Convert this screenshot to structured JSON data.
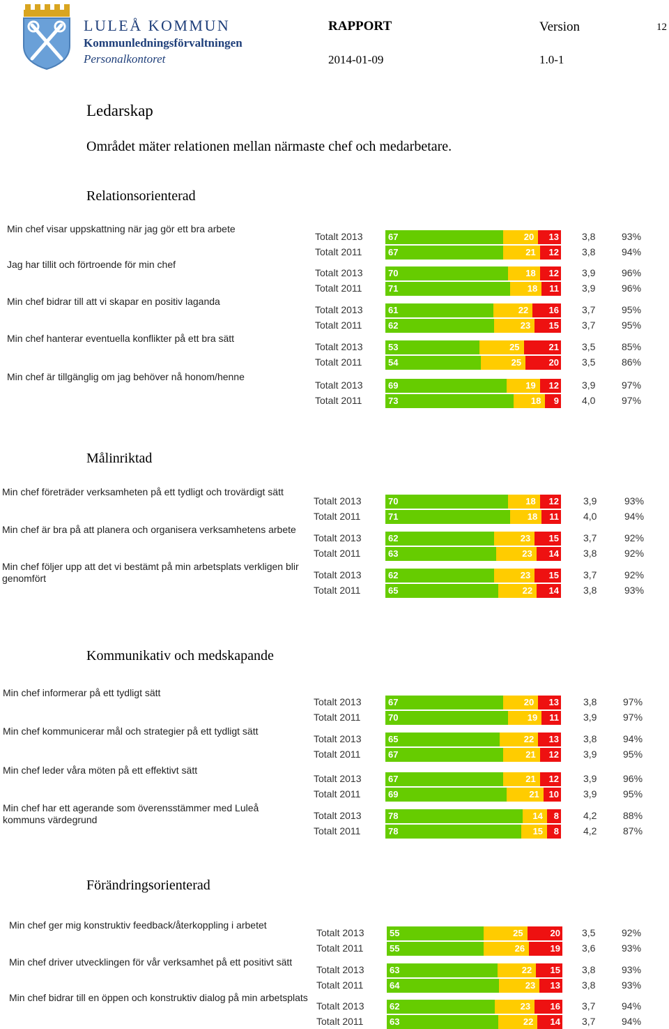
{
  "header": {
    "org_name": "LULEÅ KOMMUN",
    "department": "Kommunledningsförvaltningen",
    "office": "Personalkontoret",
    "doc_type": "RAPPORT",
    "version_label": "Version",
    "page_number": "12",
    "date": "2014-01-09",
    "version": "1.0-1"
  },
  "title": "Ledarskap",
  "intro": "Området mäter relationen mellan närmaste chef och medarbetare.",
  "colors": {
    "green": "#66cc00",
    "yellow": "#ffcc00",
    "red": "#ee1111"
  },
  "sections": [
    {
      "title": "Relationsorienterad",
      "questions": [
        {
          "text": "Min chef visar uppskattning när jag gör ett bra arbete",
          "rows": [
            {
              "label": "Totalt 2013",
              "green": 67,
              "yellow": 20,
              "red": 13,
              "mean": "3,8",
              "pct": "93%"
            },
            {
              "label": "Totalt 2011",
              "green": 67,
              "yellow": 21,
              "red": 12,
              "mean": "3,8",
              "pct": "94%"
            }
          ]
        },
        {
          "text": "Jag har tillit och förtroende för min chef",
          "rows": [
            {
              "label": "Totalt 2013",
              "green": 70,
              "yellow": 18,
              "red": 12,
              "mean": "3,9",
              "pct": "96%"
            },
            {
              "label": "Totalt 2011",
              "green": 71,
              "yellow": 18,
              "red": 11,
              "mean": "3,9",
              "pct": "96%"
            }
          ]
        },
        {
          "text": "Min chef bidrar till att vi skapar en positiv laganda",
          "rows": [
            {
              "label": "Totalt 2013",
              "green": 61,
              "yellow": 22,
              "red": 16,
              "mean": "3,7",
              "pct": "95%"
            },
            {
              "label": "Totalt 2011",
              "green": 62,
              "yellow": 23,
              "red": 15,
              "mean": "3,7",
              "pct": "95%"
            }
          ]
        },
        {
          "text": "Min chef hanterar eventuella konflikter på ett bra sätt",
          "rows": [
            {
              "label": "Totalt 2013",
              "green": 53,
              "yellow": 25,
              "red": 21,
              "mean": "3,5",
              "pct": "85%"
            },
            {
              "label": "Totalt 2011",
              "green": 54,
              "yellow": 25,
              "red": 20,
              "mean": "3,5",
              "pct": "86%"
            }
          ]
        },
        {
          "text": "Min chef är tillgänglig om jag behöver nå honom/henne",
          "rows": [
            {
              "label": "Totalt 2013",
              "green": 69,
              "yellow": 19,
              "red": 12,
              "mean": "3,9",
              "pct": "97%"
            },
            {
              "label": "Totalt 2011",
              "green": 73,
              "yellow": 18,
              "red": 9,
              "mean": "4,0",
              "pct": "97%"
            }
          ]
        }
      ]
    },
    {
      "title": "Målinriktad",
      "questions": [
        {
          "text": "Min chef företräder verksamheten på ett tydligt och trovärdigt sätt",
          "rows": [
            {
              "label": "Totalt 2013",
              "green": 70,
              "yellow": 18,
              "red": 12,
              "mean": "3,9",
              "pct": "93%"
            },
            {
              "label": "Totalt 2011",
              "green": 71,
              "yellow": 18,
              "red": 11,
              "mean": "4,0",
              "pct": "94%"
            }
          ]
        },
        {
          "text": "Min chef är bra på att planera och organisera verksamhetens arbete",
          "rows": [
            {
              "label": "Totalt 2013",
              "green": 62,
              "yellow": 23,
              "red": 15,
              "mean": "3,7",
              "pct": "92%"
            },
            {
              "label": "Totalt 2011",
              "green": 63,
              "yellow": 23,
              "red": 14,
              "mean": "3,8",
              "pct": "92%"
            }
          ]
        },
        {
          "text": "Min chef följer upp att det vi bestämt på min arbetsplats verkligen blir genomfört",
          "rows": [
            {
              "label": "Totalt 2013",
              "green": 62,
              "yellow": 23,
              "red": 15,
              "mean": "3,7",
              "pct": "92%"
            },
            {
              "label": "Totalt 2011",
              "green": 65,
              "yellow": 22,
              "red": 14,
              "mean": "3,8",
              "pct": "93%"
            }
          ]
        }
      ]
    },
    {
      "title": "Kommunikativ och medskapande",
      "questions": [
        {
          "text": "Min chef informerar på ett tydligt sätt",
          "rows": [
            {
              "label": "Totalt 2013",
              "green": 67,
              "yellow": 20,
              "red": 13,
              "mean": "3,8",
              "pct": "97%"
            },
            {
              "label": "Totalt 2011",
              "green": 70,
              "yellow": 19,
              "red": 11,
              "mean": "3,9",
              "pct": "97%"
            }
          ]
        },
        {
          "text": "Min chef kommunicerar mål och strategier på ett tydligt sätt",
          "rows": [
            {
              "label": "Totalt 2013",
              "green": 65,
              "yellow": 22,
              "red": 13,
              "mean": "3,8",
              "pct": "94%"
            },
            {
              "label": "Totalt 2011",
              "green": 67,
              "yellow": 21,
              "red": 12,
              "mean": "3,9",
              "pct": "95%"
            }
          ]
        },
        {
          "text": "Min chef leder våra möten på ett effektivt sätt",
          "rows": [
            {
              "label": "Totalt 2013",
              "green": 67,
              "yellow": 21,
              "red": 12,
              "mean": "3,9",
              "pct": "96%"
            },
            {
              "label": "Totalt 2011",
              "green": 69,
              "yellow": 21,
              "red": 10,
              "mean": "3,9",
              "pct": "95%"
            }
          ]
        },
        {
          "text": "Min chef har ett agerande som överensstämmer med Luleå kommuns värdegrund",
          "rows": [
            {
              "label": "Totalt 2013",
              "green": 78,
              "yellow": 14,
              "red": 8,
              "mean": "4,2",
              "pct": "88%"
            },
            {
              "label": "Totalt 2011",
              "green": 78,
              "yellow": 15,
              "red": 8,
              "mean": "4,2",
              "pct": "87%"
            }
          ]
        }
      ]
    },
    {
      "title": "Förändringsorienterad",
      "questions": [
        {
          "text": "Min chef ger mig konstruktiv feedback/återkoppling i arbetet",
          "rows": [
            {
              "label": "Totalt 2013",
              "green": 55,
              "yellow": 25,
              "red": 20,
              "mean": "3,5",
              "pct": "92%"
            },
            {
              "label": "Totalt 2011",
              "green": 55,
              "yellow": 26,
              "red": 19,
              "mean": "3,6",
              "pct": "93%"
            }
          ]
        },
        {
          "text": "Min chef driver utvecklingen för vår verksamhet på ett positivt sätt",
          "rows": [
            {
              "label": "Totalt 2013",
              "green": 63,
              "yellow": 22,
              "red": 15,
              "mean": "3,8",
              "pct": "93%"
            },
            {
              "label": "Totalt 2011",
              "green": 64,
              "yellow": 23,
              "red": 13,
              "mean": "3,8",
              "pct": "93%"
            }
          ]
        },
        {
          "text": "Min chef bidrar till en öppen och konstruktiv dialog på min arbetsplats",
          "rows": [
            {
              "label": "Totalt 2013",
              "green": 62,
              "yellow": 23,
              "red": 16,
              "mean": "3,7",
              "pct": "94%"
            },
            {
              "label": "Totalt 2011",
              "green": 63,
              "yellow": 22,
              "red": 14,
              "mean": "3,7",
              "pct": "94%"
            }
          ]
        }
      ]
    }
  ]
}
